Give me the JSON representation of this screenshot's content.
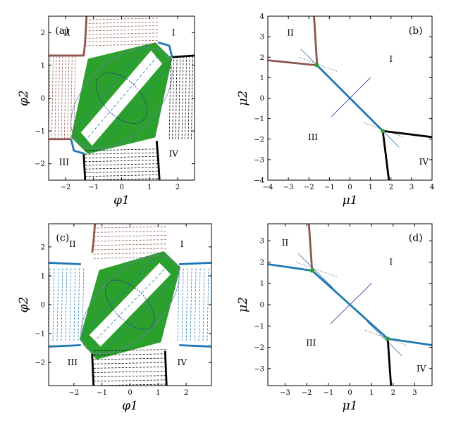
{
  "colors": {
    "brown": "#8c564b",
    "blue": "#1f77b4",
    "black": "#000000",
    "green": "#2ca02c",
    "navy": "#1f1f8f",
    "purple": "#4b3fa6"
  },
  "chart_data": [
    {
      "type": "line",
      "panel_label": "(a)",
      "xlabel": "φ1",
      "ylabel": "φ2",
      "xlim": [
        -2.6,
        2.6
      ],
      "ylim": [
        -2.5,
        2.5
      ],
      "xticks": [
        "−2",
        "−1",
        "0",
        "1",
        "2"
      ],
      "yticks": [
        "−2",
        "−1",
        "0",
        "1",
        "2"
      ],
      "regions": [
        "I",
        "II",
        "III",
        "IV"
      ],
      "series": [
        {
          "color": "brown",
          "x": [
            -1.25,
            -1.3,
            -1.35,
            -2.6
          ],
          "y": [
            2.5,
            1.7,
            1.3,
            1.3
          ]
        },
        {
          "color": "brown",
          "x": [
            -2.6,
            -1.8
          ],
          "y": [
            -1.25,
            -1.25
          ]
        },
        {
          "color": "black",
          "x": [
            1.8,
            2.6
          ],
          "y": [
            1.25,
            1.3
          ]
        },
        {
          "color": "black",
          "x": [
            1.25,
            1.3,
            1.35
          ],
          "y": [
            -1.3,
            -1.8,
            -2.5
          ]
        },
        {
          "color": "black",
          "x": [
            -1.35,
            -1.3
          ],
          "y": [
            -1.7,
            -2.5
          ]
        },
        {
          "color": "blue",
          "x": [
            -1.3,
            -1.7,
            -1.8
          ],
          "y": [
            -1.7,
            -1.6,
            -1.25
          ]
        },
        {
          "color": "blue",
          "x": [
            1.3,
            1.7,
            1.8
          ],
          "y": [
            1.7,
            1.6,
            1.25
          ]
        }
      ],
      "green_region": {
        "x": [
          -1.2,
          1.2,
          1.8,
          1.2,
          -1.2,
          -1.8
        ],
        "y": [
          1.2,
          1.7,
          1.2,
          -1.2,
          -1.7,
          -1.2
        ]
      }
    },
    {
      "type": "line",
      "panel_label": "(b)",
      "xlabel": "μ1",
      "ylabel": "μ2",
      "xlim": [
        -4,
        4
      ],
      "ylim": [
        -4,
        4
      ],
      "xticks": [
        "−4",
        "−3",
        "−2",
        "−1",
        "0",
        "1",
        "2",
        "3",
        "4"
      ],
      "yticks": [
        "−4",
        "−3",
        "−2",
        "−1",
        "0",
        "1",
        "2",
        "3",
        "4"
      ],
      "regions": [
        "I",
        "II",
        "III",
        "IV"
      ],
      "series": [
        {
          "color": "brown",
          "x": [
            -1.75,
            -1.6
          ],
          "y": [
            4,
            1.6
          ]
        },
        {
          "color": "brown",
          "x": [
            -4,
            -1.6
          ],
          "y": [
            1.85,
            1.6
          ]
        },
        {
          "color": "blue",
          "x": [
            -1.6,
            1.6
          ],
          "y": [
            1.6,
            -1.6
          ]
        },
        {
          "color": "black",
          "x": [
            1.6,
            4
          ],
          "y": [
            -1.6,
            -1.9
          ]
        },
        {
          "color": "black",
          "x": [
            1.6,
            1.9
          ],
          "y": [
            -1.6,
            -4
          ]
        }
      ],
      "points": {
        "x": [
          -1.6,
          1.6
        ],
        "y": [
          1.6,
          -1.6
        ]
      }
    },
    {
      "type": "line",
      "panel_label": "(c)",
      "xlabel": "φ1",
      "ylabel": "φ2",
      "xlim": [
        -2.9,
        2.9
      ],
      "ylim": [
        -2.8,
        2.8
      ],
      "xticks": [
        "−2",
        "−1",
        "0",
        "1",
        "2"
      ],
      "yticks": [
        "−2",
        "−1",
        "0",
        "1",
        "2"
      ],
      "regions": [
        "I",
        "II",
        "III",
        "IV"
      ],
      "series": [
        {
          "color": "brown",
          "x": [
            -1.25,
            -1.3,
            -1.35
          ],
          "y": [
            2.8,
            2.2,
            1.8
          ]
        },
        {
          "color": "blue",
          "x": [
            -2.9,
            -1.75
          ],
          "y": [
            1.45,
            1.4
          ]
        },
        {
          "color": "blue",
          "x": [
            -2.9,
            -1.75
          ],
          "y": [
            -1.45,
            -1.4
          ]
        },
        {
          "color": "blue",
          "x": [
            1.75,
            2.9
          ],
          "y": [
            1.4,
            1.45
          ]
        },
        {
          "color": "blue",
          "x": [
            1.75,
            2.9
          ],
          "y": [
            -1.4,
            -1.45
          ]
        },
        {
          "color": "black",
          "x": [
            1.25,
            1.3
          ],
          "y": [
            -1.6,
            -2.8
          ]
        },
        {
          "color": "black",
          "x": [
            -1.35,
            -1.3
          ],
          "y": [
            -1.7,
            -2.8
          ]
        }
      ],
      "green_region": {
        "x": [
          -1.1,
          1.2,
          1.8,
          1.1,
          -1.2,
          -1.8
        ],
        "y": [
          1.2,
          1.85,
          1.3,
          -1.3,
          -1.9,
          -1.2
        ]
      }
    },
    {
      "type": "line",
      "panel_label": "(d)",
      "xlabel": "μ1",
      "ylabel": "μ2",
      "xlim": [
        -3.8,
        3.8
      ],
      "ylim": [
        -3.8,
        3.8
      ],
      "xticks": [
        "−3",
        "−2",
        "−1",
        "0",
        "1",
        "2",
        "3"
      ],
      "yticks": [
        "−3",
        "−2",
        "−1",
        "0",
        "1",
        "2",
        "3"
      ],
      "regions": [
        "I",
        "II",
        "III",
        "IV"
      ],
      "series": [
        {
          "color": "brown",
          "x": [
            -1.9,
            -1.75
          ],
          "y": [
            3.8,
            1.6
          ]
        },
        {
          "color": "blue",
          "x": [
            -3.8,
            -1.75,
            1.75,
            3.8
          ],
          "y": [
            1.9,
            1.6,
            -1.6,
            -1.9
          ]
        },
        {
          "color": "black",
          "x": [
            1.75,
            1.9
          ],
          "y": [
            -1.6,
            -3.8
          ]
        }
      ],
      "points": {
        "x": [
          -1.75,
          1.75
        ],
        "y": [
          1.6,
          -1.6
        ]
      }
    }
  ]
}
